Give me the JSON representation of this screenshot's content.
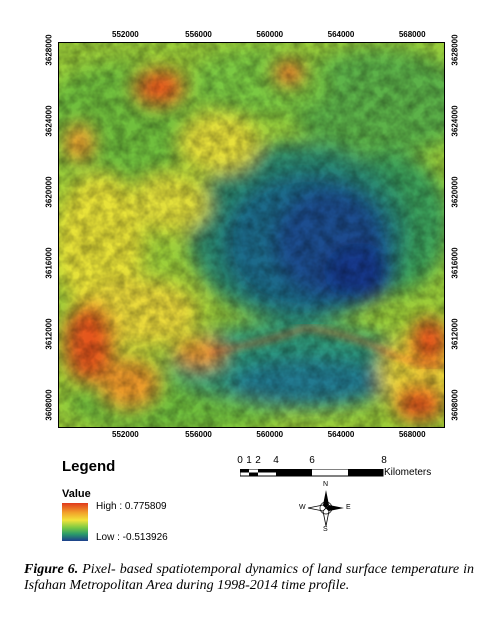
{
  "map": {
    "top_ticks": [
      "552000",
      "556000",
      "560000",
      "564000",
      "568000"
    ],
    "bottom_ticks": [
      "552000",
      "556000",
      "560000",
      "564000",
      "568000"
    ],
    "left_ticks": [
      "3628000",
      "3624000",
      "3620000",
      "3616000",
      "3612000",
      "3608000"
    ],
    "right_ticks": [
      "3628000",
      "3624000",
      "3620000",
      "3616000",
      "3612000",
      "3608000"
    ]
  },
  "legend": {
    "title": "Legend",
    "value_title": "Value",
    "high_label": "High : 0.775809",
    "low_label": "Low : -0.513926",
    "high_value": 0.775809,
    "low_value": -0.513926,
    "ramp_colors": [
      "#e03a1d",
      "#f2a02a",
      "#f2e33a",
      "#7ac943",
      "#2a9a6a",
      "#1d3f8c"
    ]
  },
  "scale_bar": {
    "labels": [
      "0",
      "1",
      "2",
      "4",
      "6",
      "8"
    ],
    "unit": "Kilometers"
  },
  "north_arrow": {
    "n": "N",
    "s": "S",
    "e": "E",
    "w": "W"
  },
  "caption": {
    "label": "Figure 6.",
    "text": " Pixel- based spatiotemporal dynamics of land surface temperature in Isfahan Metropolitan Area during 1998-2014 time profile."
  }
}
